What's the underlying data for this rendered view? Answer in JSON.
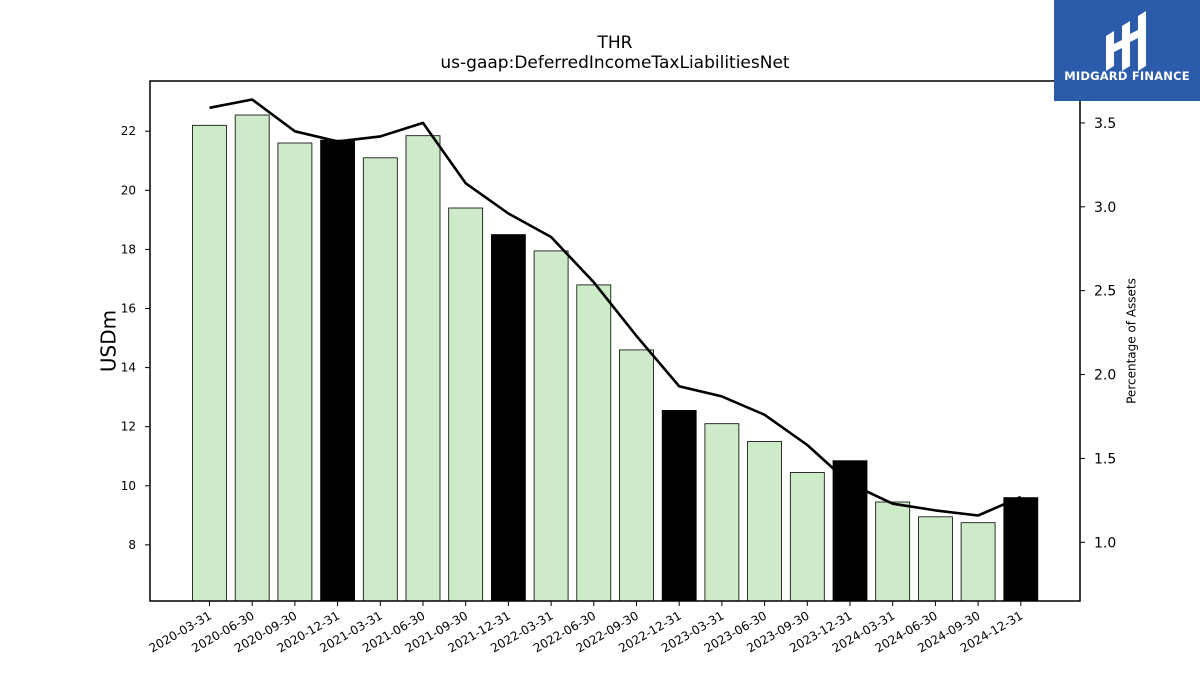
{
  "chart_data": {
    "type": "bar",
    "title": "THR",
    "subtitle": "us-gaap:DeferredIncomeTaxLiabilitiesNet",
    "ylabel": "USDm",
    "y2label": "Percentage of Assets",
    "ylim": [
      6.1,
      23.7
    ],
    "y2lim": [
      0.65,
      3.75
    ],
    "yticks": [
      8,
      10,
      12,
      14,
      16,
      18,
      20,
      22
    ],
    "y2ticks": [
      "1.0",
      "1.5",
      "2.0",
      "2.5",
      "3.0",
      "3.5"
    ],
    "categories": [
      "2020-03-31",
      "2020-06-30",
      "2020-09-30",
      "2020-12-31",
      "2021-03-31",
      "2021-06-30",
      "2021-09-30",
      "2021-12-31",
      "2022-03-31",
      "2022-06-30",
      "2022-09-30",
      "2022-12-31",
      "2023-03-31",
      "2023-06-30",
      "2023-09-30",
      "2023-12-31",
      "2024-03-31",
      "2024-06-30",
      "2024-09-30",
      "2024-12-31"
    ],
    "series": [
      {
        "type": "bar",
        "axis": "left",
        "values": [
          22.2,
          22.55,
          21.6,
          21.7,
          21.1,
          21.85,
          19.4,
          18.5,
          17.95,
          16.8,
          14.6,
          12.55,
          12.1,
          11.5,
          10.45,
          10.85,
          9.45,
          8.95,
          8.75,
          9.6
        ],
        "highlight": [
          false,
          false,
          false,
          true,
          false,
          false,
          false,
          true,
          false,
          false,
          false,
          true,
          false,
          false,
          false,
          true,
          false,
          false,
          false,
          true
        ],
        "color": "#cdeac9",
        "highlight_color": "#000000"
      },
      {
        "type": "line",
        "axis": "right",
        "values": [
          3.59,
          3.64,
          3.45,
          3.39,
          3.42,
          3.5,
          3.14,
          2.96,
          2.82,
          2.55,
          2.23,
          1.93,
          1.87,
          1.76,
          1.58,
          1.35,
          1.23,
          1.19,
          1.16,
          1.27
        ],
        "color": "#000000"
      }
    ],
    "grid": false
  },
  "logo": {
    "text": "MIDGARD FINANCE",
    "background": "#2b5cab"
  }
}
